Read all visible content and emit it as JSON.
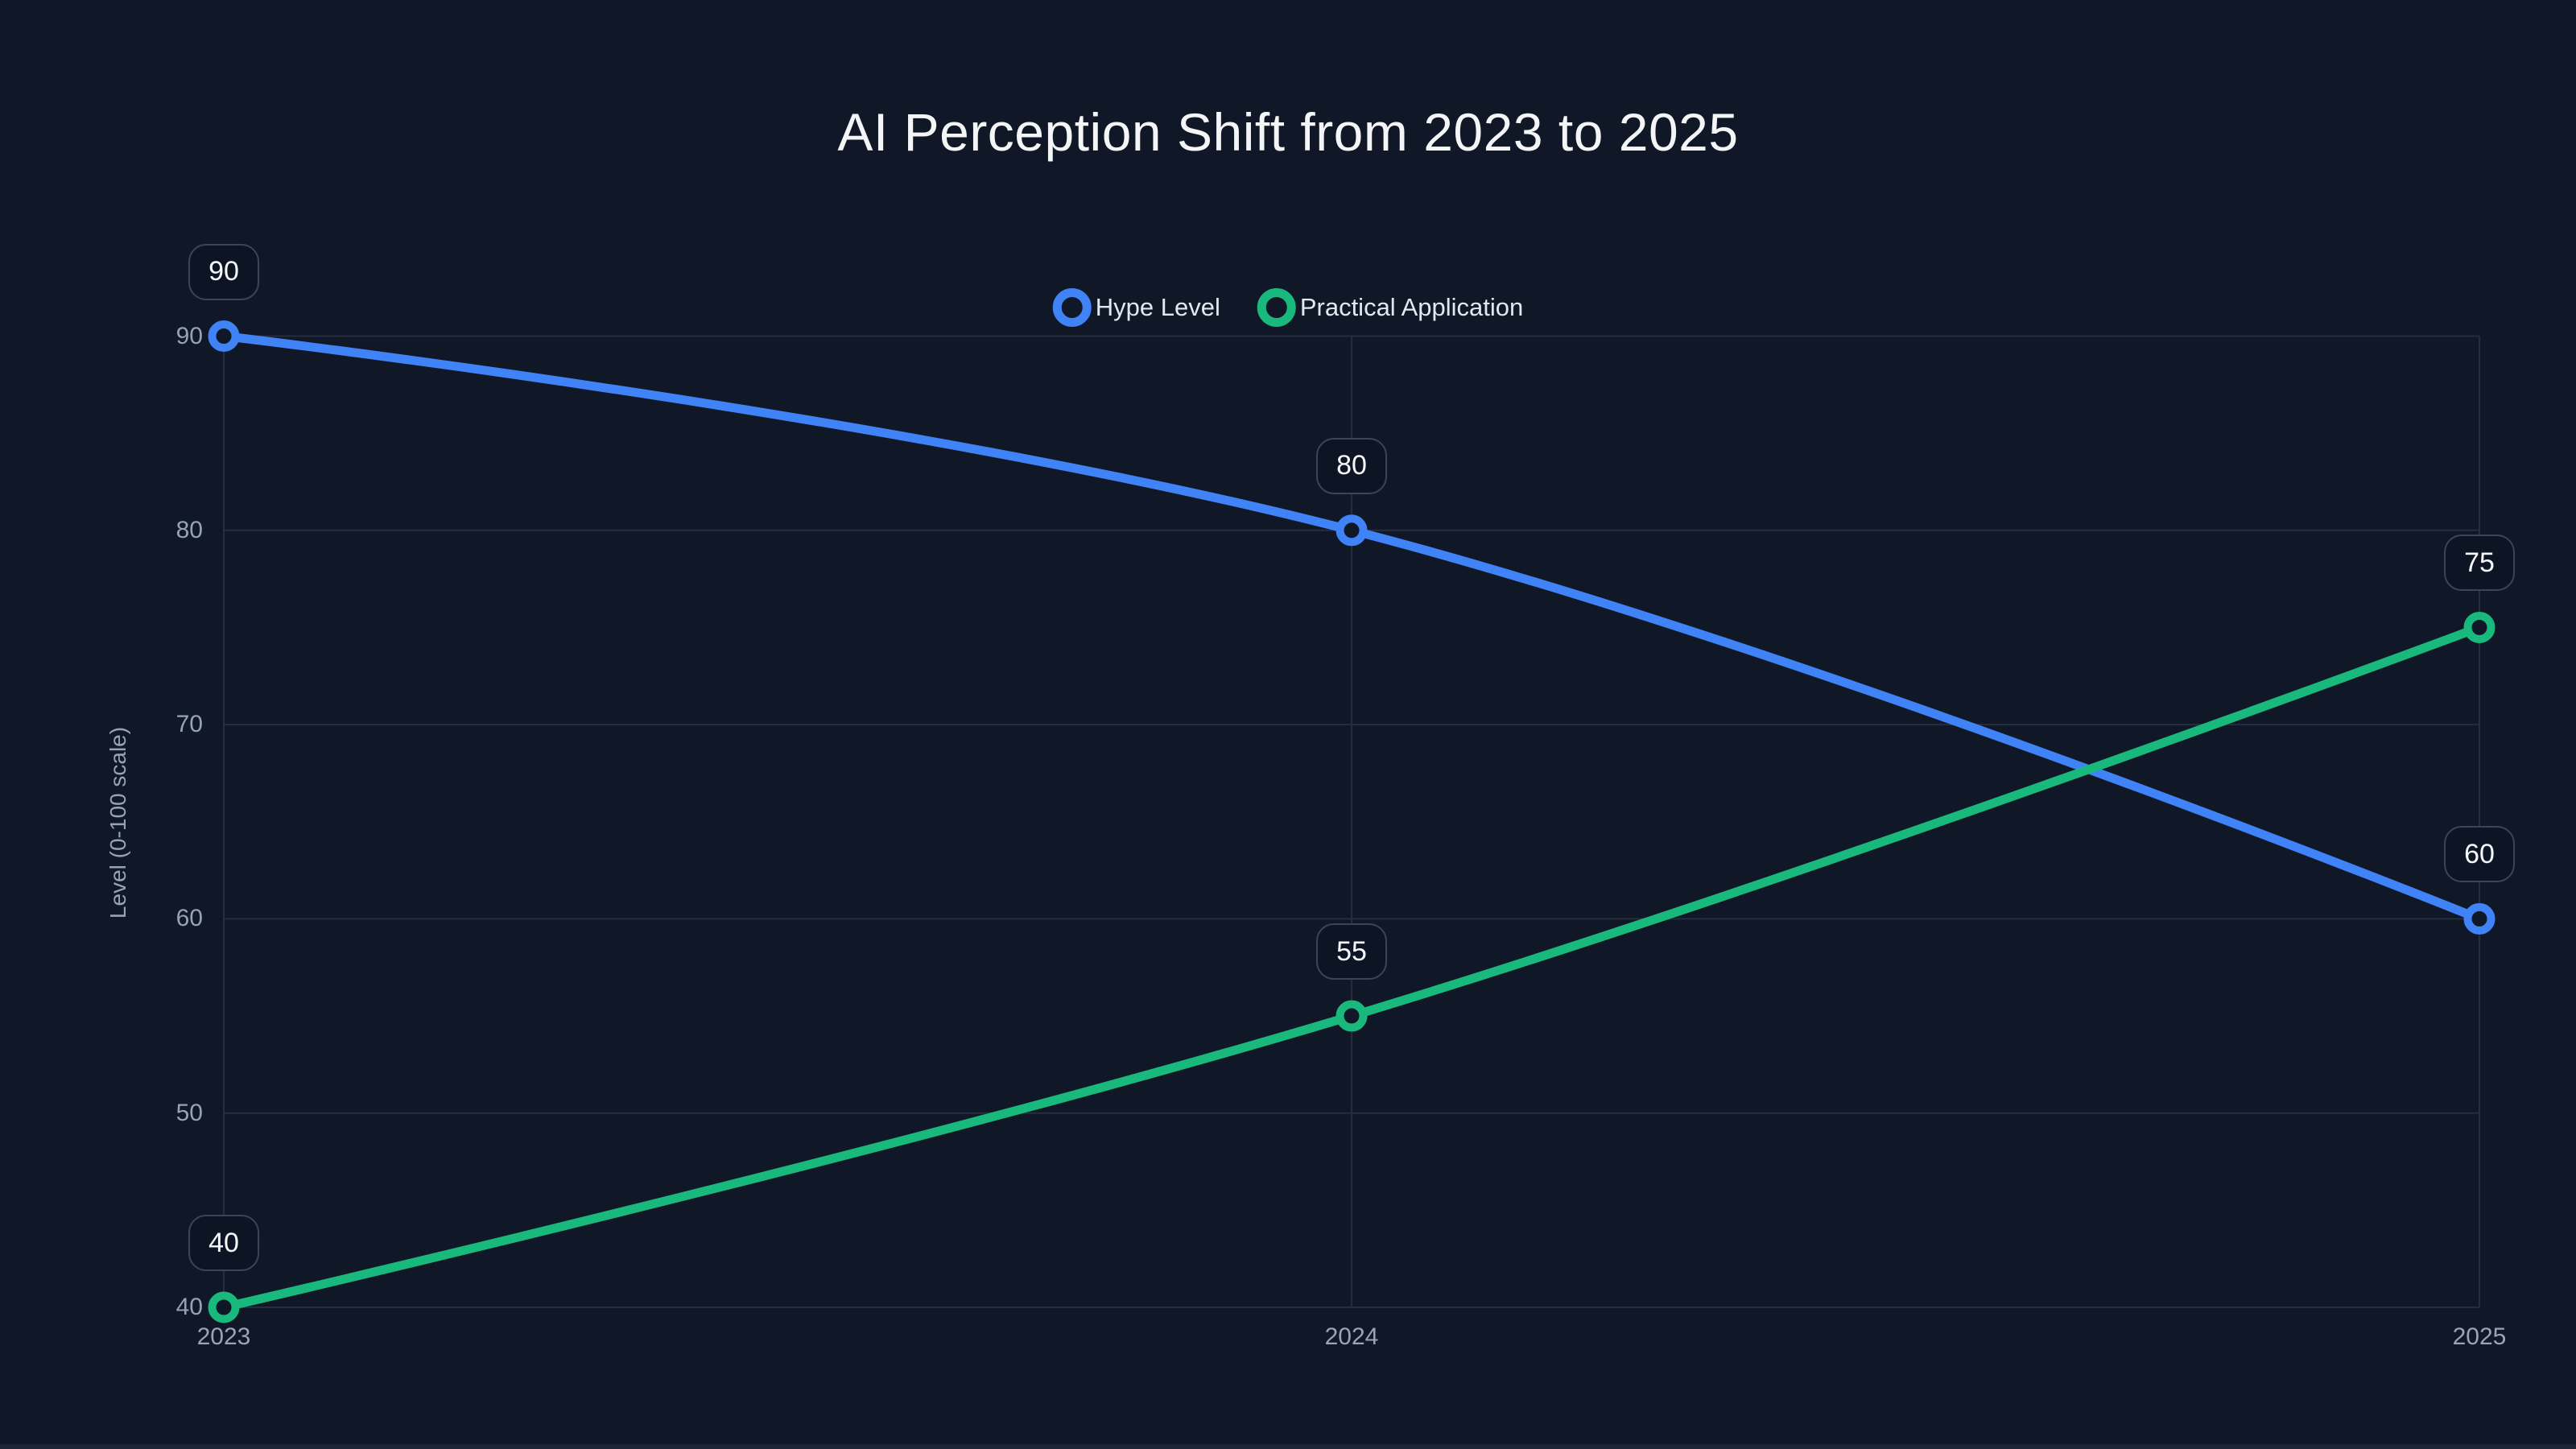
{
  "title": "AI Perception Shift from 2023 to 2025",
  "colors": {
    "background": "#101726",
    "grid": "#242e3e",
    "title_text": "#f3f5f7",
    "legend_text": "#e2e8f0",
    "tick_text": "#94a3b8",
    "badge_bg": "#0d1524",
    "badge_border": "#3a455a",
    "badge_text": "#f5f7fa",
    "footer_strip": "#1e2636",
    "hype_blue": "#3f83f7",
    "practical_green": "#19b97e"
  },
  "legend": {
    "items": [
      {
        "label": "Hype Level",
        "swatch_icon": "ring-icon",
        "color": "#3f83f7"
      },
      {
        "label": "Practical Application",
        "swatch_icon": "ring-icon",
        "color": "#19b97e"
      }
    ]
  },
  "chart_data": {
    "type": "line",
    "title": "AI Perception Shift from 2023 to 2025",
    "xlabel": "",
    "ylabel": "Level (0-100 scale)",
    "categories": [
      "2023",
      "2024",
      "2025"
    ],
    "series": [
      {
        "name": "Hype Level",
        "values": [
          90,
          80,
          60
        ],
        "color": "#3f83f7"
      },
      {
        "name": "Practical Application",
        "values": [
          40,
          55,
          75
        ],
        "color": "#19b97e"
      }
    ],
    "ylim": [
      40,
      90
    ],
    "yticks": [
      40,
      50,
      60,
      70,
      80,
      90
    ],
    "grid": true,
    "legend_position": "top-center",
    "curve": "smooth",
    "point_labels": [
      {
        "series": "Hype Level",
        "labels": [
          "90",
          "80",
          "60"
        ]
      },
      {
        "series": "Practical Application",
        "labels": [
          "40",
          "55",
          "75"
        ]
      }
    ]
  }
}
